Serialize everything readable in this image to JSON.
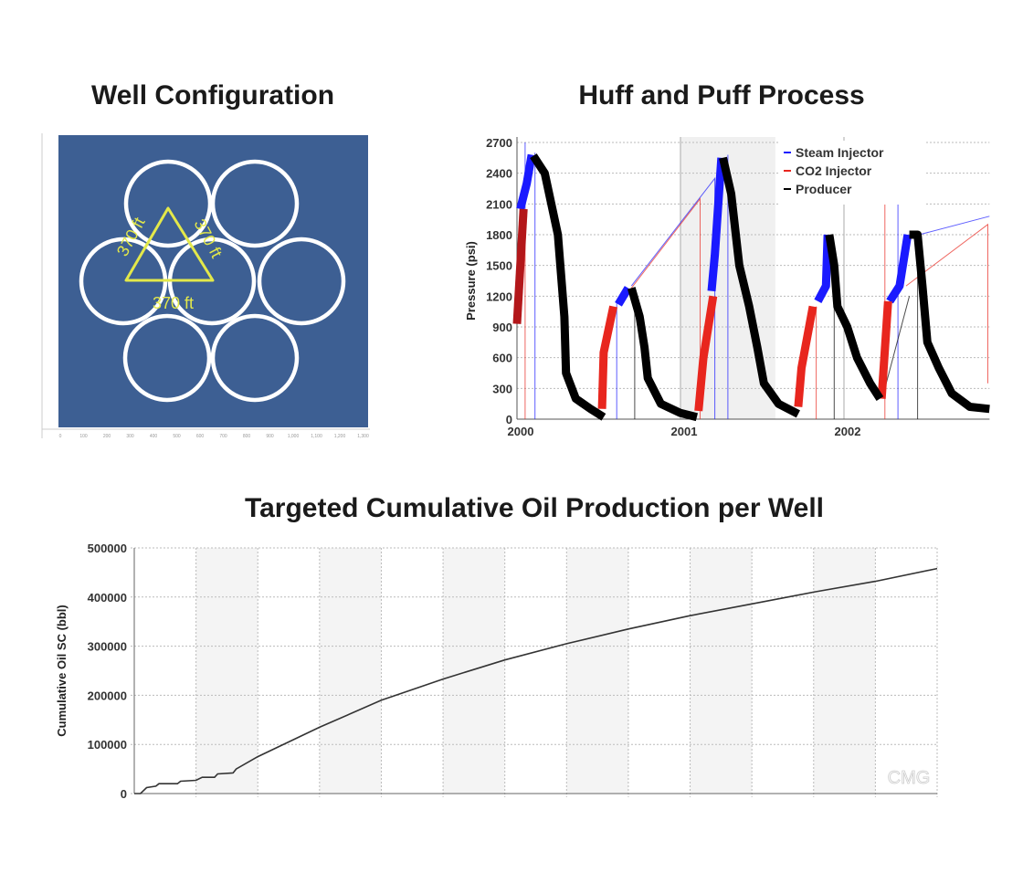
{
  "titles": {
    "well": "Well Configuration",
    "huff": "Huff and Puff Process",
    "cum": "Targeted Cumulative Oil Production per Well"
  },
  "colors": {
    "steam": "#1a1aff",
    "co2": "#e8261e",
    "co2_dark": "#b3171a",
    "producer": "#000000",
    "well_bg": "#3d5f93",
    "triangle": "#e3e84a"
  },
  "chart_data": [
    {
      "type": "diagram",
      "title": "Well Configuration",
      "x_ticks": [
        "0",
        "100",
        "200",
        "300",
        "400",
        "500",
        "600",
        "700",
        "800",
        "900",
        "1,000",
        "1,100",
        "1,200",
        "1,300"
      ],
      "wells": 7,
      "spacing_labels": [
        "370 ft",
        "370 ft",
        "370 ft"
      ]
    },
    {
      "type": "line",
      "title": "Huff and Puff Process",
      "ylabel": "Pressure (psi)",
      "xlabel": "",
      "xlim": [
        2000,
        2002.89
      ],
      "ylim": [
        0,
        2700
      ],
      "x_ticks": [
        "2000",
        "2001",
        "2002"
      ],
      "y_ticks": [
        "0",
        "300",
        "600",
        "900",
        "1200",
        "1500",
        "1800",
        "2100",
        "2400",
        "2700"
      ],
      "legend": {
        "position": "top-right",
        "entries": [
          "Steam Injector",
          "CO2 Injector",
          "Producer"
        ]
      },
      "series": [
        {
          "name": "Steam Injector",
          "color": "#1a1aff",
          "thick": [
            [
              [
                2000.02,
                2050
              ],
              [
                2000.06,
                2300
              ],
              [
                2000.09,
                2580
              ]
            ],
            [
              [
                2000.62,
                1120
              ],
              [
                2000.68,
                1280
              ]
            ],
            [
              [
                2001.19,
                1250
              ],
              [
                2001.21,
                1600
              ],
              [
                2001.25,
                2550
              ]
            ],
            [
              [
                2001.84,
                1150
              ],
              [
                2001.89,
                1300
              ],
              [
                2001.9,
                1800
              ]
            ],
            [
              [
                2002.28,
                1150
              ],
              [
                2002.34,
                1300
              ],
              [
                2002.39,
                1800
              ]
            ]
          ],
          "thin": [
            [
              [
                2000.05,
                1950
              ],
              [
                2000.05,
                2700
              ]
            ],
            [
              [
                2000.11,
                0
              ],
              [
                2000.11,
                2600
              ]
            ],
            [
              [
                2000.61,
                0
              ],
              [
                2000.61,
                1150
              ]
            ],
            [
              [
                2000.7,
                1300
              ],
              [
                2001.21,
                2350
              ],
              [
                2001.21,
                0
              ]
            ],
            [
              [
                2001.29,
                0
              ],
              [
                2001.29,
                2580
              ]
            ],
            [
              [
                2002.33,
                0
              ],
              [
                2002.33,
                2100
              ]
            ],
            [
              [
                2002.46,
                1800
              ],
              [
                2002.89,
                1980
              ]
            ]
          ]
        },
        {
          "name": "CO2 Injector",
          "color": "#e8261e",
          "thick": [
            [
              [
                2000.0,
                930
              ],
              [
                2000.04,
                2050
              ]
            ],
            [
              [
                2000.52,
                100
              ],
              [
                2000.53,
                650
              ],
              [
                2000.59,
                1100
              ]
            ],
            [
              [
                2001.11,
                80
              ],
              [
                2001.14,
                600
              ],
              [
                2001.2,
                1200
              ]
            ],
            [
              [
                2001.72,
                120
              ],
              [
                2001.74,
                500
              ],
              [
                2001.81,
                1100
              ]
            ],
            [
              [
                2002.23,
                200
              ],
              [
                2002.27,
                1150
              ]
            ]
          ],
          "thin": [
            [
              [
                2000.05,
                0
              ],
              [
                2000.05,
                2050
              ]
            ],
            [
              [
                2000.7,
                1280
              ],
              [
                2001.12,
                2150
              ],
              [
                2001.12,
                0
              ]
            ],
            [
              [
                2001.83,
                0
              ],
              [
                2001.83,
                1100
              ]
            ],
            [
              [
                2002.25,
                0
              ],
              [
                2002.25,
                2250
              ]
            ],
            [
              [
                2002.38,
                1300
              ],
              [
                2002.88,
                1900
              ],
              [
                2002.88,
                350
              ]
            ]
          ]
        },
        {
          "name": "Producer",
          "color": "#000000",
          "thick": [
            [
              [
                2000.1,
                2570
              ],
              [
                2000.17,
                2400
              ],
              [
                2000.25,
                1800
              ],
              [
                2000.29,
                1000
              ],
              [
                2000.3,
                450
              ],
              [
                2000.36,
                200
              ],
              [
                2000.45,
                100
              ],
              [
                2000.53,
                20
              ]
            ],
            [
              [
                2000.7,
                1280
              ],
              [
                2000.75,
                1000
              ],
              [
                2000.78,
                700
              ],
              [
                2000.8,
                400
              ],
              [
                2000.88,
                150
              ],
              [
                2001.0,
                60
              ],
              [
                2001.1,
                20
              ]
            ],
            [
              [
                2001.26,
                2550
              ],
              [
                2001.31,
                2200
              ],
              [
                2001.36,
                1500
              ],
              [
                2001.42,
                1100
              ],
              [
                2001.47,
                700
              ],
              [
                2001.51,
                350
              ],
              [
                2001.6,
                150
              ],
              [
                2001.72,
                50
              ]
            ],
            [
              [
                2001.91,
                1800
              ],
              [
                2001.94,
                1500
              ],
              [
                2001.96,
                1100
              ],
              [
                2002.02,
                900
              ],
              [
                2002.08,
                600
              ],
              [
                2002.16,
                350
              ],
              [
                2002.22,
                200
              ]
            ],
            [
              [
                2002.4,
                1800
              ],
              [
                2002.45,
                1800
              ],
              [
                2002.48,
                1300
              ],
              [
                2002.51,
                750
              ],
              [
                2002.58,
                500
              ],
              [
                2002.66,
                250
              ],
              [
                2002.77,
                120
              ],
              [
                2002.89,
                100
              ]
            ]
          ],
          "thin": [
            [
              [
                2000.72,
                0
              ],
              [
                2000.72,
                1280
              ]
            ],
            [
              [
                2001.94,
                0
              ],
              [
                2001.94,
                1100
              ]
            ],
            [
              [
                2002.25,
                300
              ],
              [
                2002.4,
                1200
              ]
            ],
            [
              [
                2002.45,
                0
              ],
              [
                2002.45,
                1800
              ]
            ]
          ]
        }
      ],
      "shaded_band": [
        2001.0,
        2001.58
      ]
    },
    {
      "type": "line",
      "title": "Targeted Cumulative Oil Production per Well",
      "ylabel": "Cumulative Oil SC (bbl)",
      "xlabel": "",
      "x_intervals": 13,
      "ylim": [
        0,
        500000
      ],
      "y_ticks": [
        "0",
        "100000",
        "200000",
        "300000",
        "400000",
        "500000"
      ],
      "watermark": "CMG",
      "series": [
        {
          "name": "Cumulative Oil",
          "color": "#333333",
          "x": [
            0,
            0.1,
            0.2,
            0.35,
            0.4,
            0.7,
            0.75,
            1.0,
            1.1,
            1.3,
            1.35,
            1.6,
            1.65,
            2,
            3,
            4,
            5,
            6,
            7,
            8,
            9,
            10,
            11,
            12,
            13
          ],
          "y": [
            0,
            0,
            12000,
            15000,
            20000,
            20000,
            25000,
            27000,
            33000,
            33000,
            40000,
            42000,
            50000,
            75000,
            135000,
            190000,
            233000,
            272000,
            305000,
            335000,
            362000,
            386000,
            410000,
            432000,
            458000
          ]
        }
      ]
    }
  ]
}
